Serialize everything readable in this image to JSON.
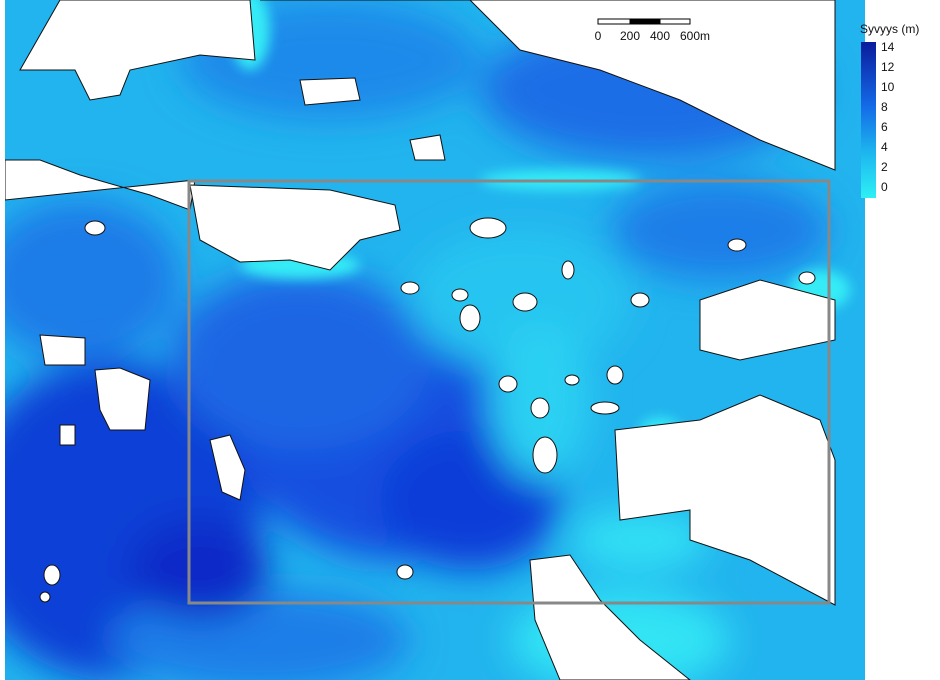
{
  "legend": {
    "title": "Syvyys (m)",
    "ticks": [
      14,
      12,
      10,
      8,
      6,
      4,
      2,
      0
    ]
  },
  "scale_bar": {
    "labels": [
      "0",
      "200",
      "400",
      "600m"
    ]
  }
}
